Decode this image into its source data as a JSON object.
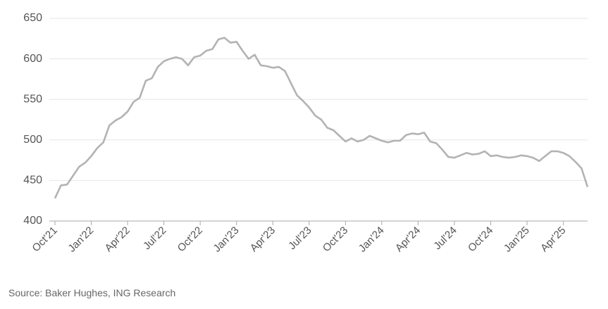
{
  "chart_data": {
    "type": "line",
    "categories": [
      "Oct'21",
      null,
      null,
      null,
      null,
      null,
      "Jan'22",
      null,
      null,
      null,
      null,
      null,
      "Apr'22",
      null,
      null,
      null,
      null,
      null,
      "Jul'22",
      null,
      null,
      null,
      null,
      null,
      "Oct'22",
      null,
      null,
      null,
      null,
      null,
      "Jan'23",
      null,
      null,
      null,
      null,
      null,
      "Apr'23",
      null,
      null,
      null,
      null,
      null,
      "Jul'23",
      null,
      null,
      null,
      null,
      null,
      "Oct'23",
      null,
      null,
      null,
      null,
      null,
      "Jan'24",
      null,
      null,
      null,
      null,
      null,
      "Apr'24",
      null,
      null,
      null,
      null,
      null,
      "Jul'24",
      null,
      null,
      null,
      null,
      null,
      "Oct'24",
      null,
      null,
      null,
      null,
      null,
      "Jan'25",
      null,
      null,
      null,
      null,
      null,
      "Apr'25",
      null,
      null,
      null,
      null
    ],
    "values": [
      428,
      444,
      445,
      456,
      467,
      472,
      480,
      490,
      497,
      518,
      524,
      528,
      535,
      547,
      552,
      573,
      576,
      590,
      597,
      600,
      602,
      600,
      592,
      602,
      604,
      610,
      612,
      624,
      626,
      620,
      621,
      610,
      600,
      605,
      592,
      591,
      589,
      590,
      585,
      570,
      555,
      548,
      540,
      530,
      525,
      515,
      512,
      505,
      498,
      502,
      498,
      500,
      505,
      502,
      499,
      497,
      499,
      499,
      506,
      508,
      507,
      509,
      498,
      496,
      488,
      479,
      478,
      481,
      484,
      482,
      483,
      486,
      480,
      481,
      479,
      478,
      479,
      481,
      480,
      478,
      474,
      480,
      486,
      486,
      484,
      480,
      473,
      465,
      442
    ],
    "color": "#b3b3b3",
    "ylim": [
      400,
      650
    ],
    "yticks": [
      400,
      450,
      500,
      550,
      600,
      650
    ],
    "grid": true,
    "source": "Source: Baker Hughes, ING Research"
  }
}
